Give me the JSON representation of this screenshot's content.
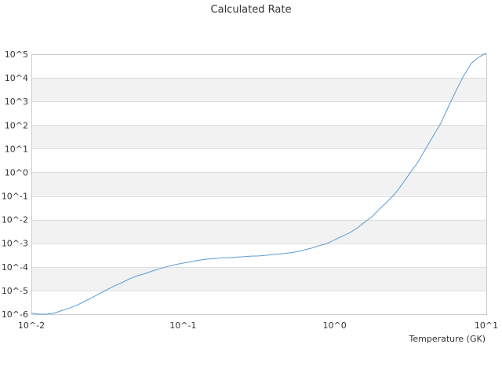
{
  "chart_data": {
    "type": "line",
    "title": "Calculated Rate",
    "xlabel": "Temperature (GK)",
    "ylabel": "",
    "x_scale": "log",
    "y_scale": "log",
    "xlim": [
      0.01,
      10
    ],
    "ylim": [
      1e-06,
      100000
    ],
    "x_ticks": [
      {
        "value": 0.01,
        "label": "10^-2"
      },
      {
        "value": 0.1,
        "label": "10^-1"
      },
      {
        "value": 1,
        "label": "10^0"
      },
      {
        "value": 10,
        "label": "10^1"
      }
    ],
    "y_ticks": [
      {
        "value": 1e-06,
        "label": "10^-6"
      },
      {
        "value": 1e-05,
        "label": "10^-5"
      },
      {
        "value": 0.0001,
        "label": "10^-4"
      },
      {
        "value": 0.001,
        "label": "10^-3"
      },
      {
        "value": 0.01,
        "label": "10^-2"
      },
      {
        "value": 0.1,
        "label": "10^-1"
      },
      {
        "value": 1,
        "label": "10^0"
      },
      {
        "value": 10,
        "label": "10^1"
      },
      {
        "value": 100,
        "label": "10^2"
      },
      {
        "value": 1000,
        "label": "10^3"
      },
      {
        "value": 10000,
        "label": "10^4"
      },
      {
        "value": 100000,
        "label": "10^5"
      }
    ],
    "grid": "alternating horizontal bands",
    "legend": "none",
    "colors": {
      "line": "#5b9bd5",
      "band": "#f2f2f2",
      "grid": "#dddddd",
      "axis": "#cccccc"
    },
    "series": [
      {
        "x": [
          0.01,
          0.0112,
          0.0126,
          0.0141,
          0.0158,
          0.0178,
          0.02,
          0.0224,
          0.0251,
          0.0282,
          0.0316,
          0.0355,
          0.0398,
          0.0447,
          0.0501,
          0.0562,
          0.0631,
          0.0708,
          0.0794,
          0.0891,
          0.1,
          0.1122,
          0.1259,
          0.1413,
          0.1585,
          0.1778,
          0.1995,
          0.2239,
          0.2512,
          0.2818,
          0.3162,
          0.3548,
          0.3981,
          0.4467,
          0.5012,
          0.5623,
          0.631,
          0.7079,
          0.7943,
          0.8913,
          1,
          1.122,
          1.259,
          1.413,
          1.585,
          1.778,
          1.995,
          2.239,
          2.512,
          2.818,
          3.162,
          3.548,
          3.981,
          4.467,
          5.012,
          5.623,
          6.31,
          7.079,
          7.943,
          8.913,
          10
        ],
        "y": [
          1.1e-06,
          1e-06,
          1e-06,
          1.1e-06,
          1.4e-06,
          1.8e-06,
          2.4e-06,
          3.5e-06,
          5e-06,
          7.5e-06,
          1.1e-05,
          1.6e-05,
          2.2e-05,
          3.2e-05,
          4.2e-05,
          5.2e-05,
          6.8e-05,
          8.5e-05,
          0.000105,
          0.000125,
          0.000145,
          0.000165,
          0.00019,
          0.00021,
          0.000225,
          0.00024,
          0.000245,
          0.00026,
          0.00027,
          0.000285,
          0.00029,
          0.00031,
          0.000335,
          0.00036,
          0.00039,
          0.00044,
          0.00052,
          0.00063,
          0.0008,
          0.00098,
          0.0014,
          0.002,
          0.0028,
          0.0045,
          0.008,
          0.014,
          0.03,
          0.06,
          0.13,
          0.35,
          1.0,
          2.8,
          10,
          35,
          120,
          600,
          2800,
          12000,
          40000,
          75000,
          110000
        ]
      }
    ]
  }
}
